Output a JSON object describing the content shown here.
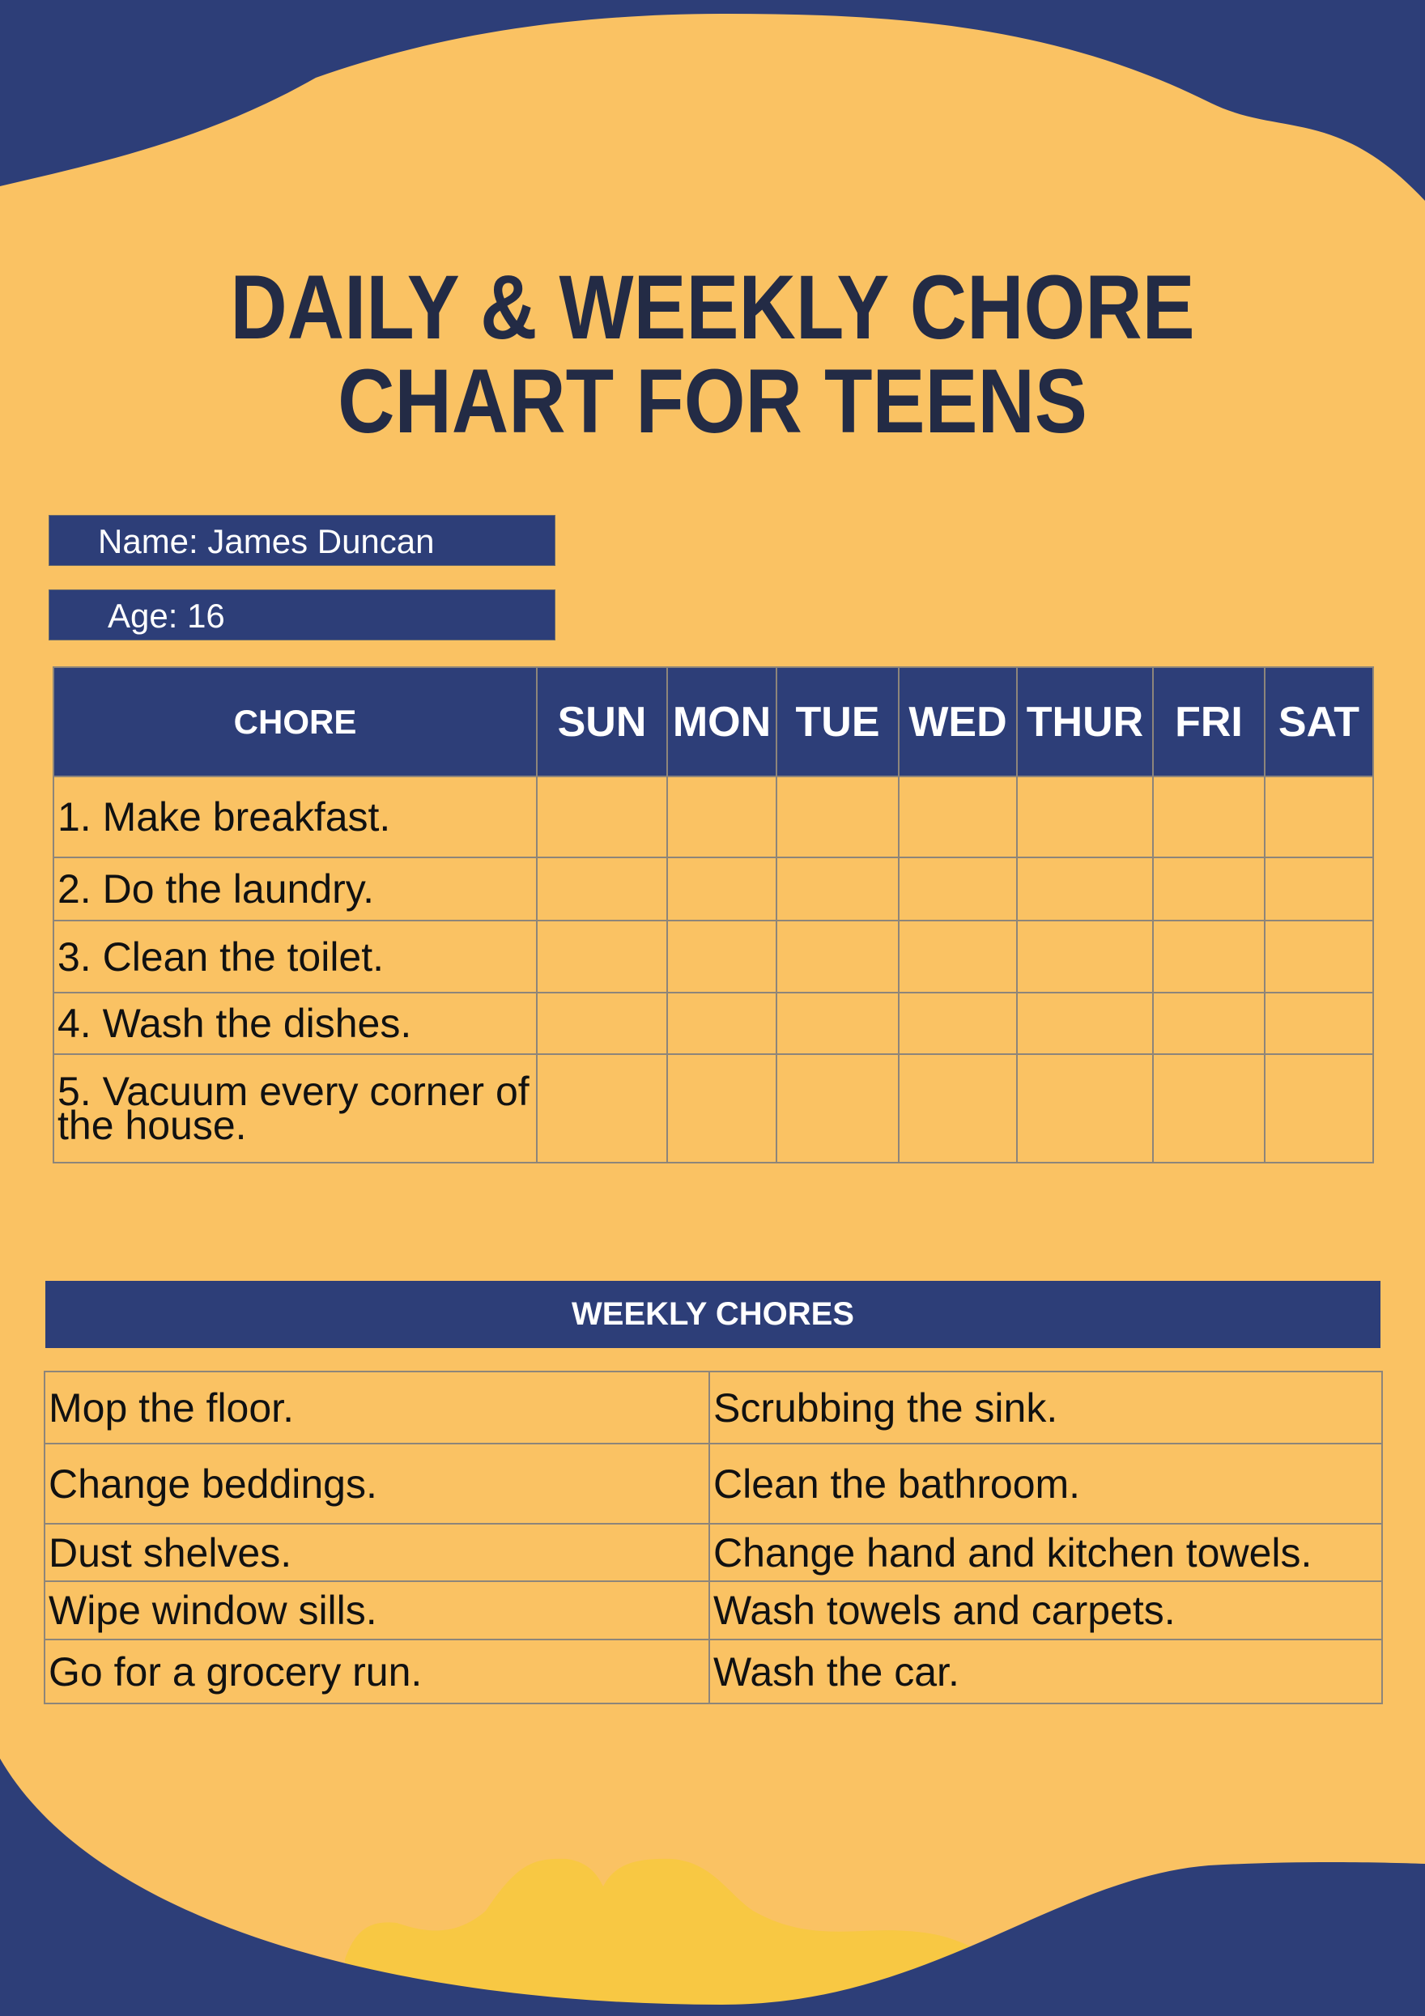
{
  "title": {
    "line1": "DAILY & WEEKLY CHORE",
    "line2": "CHART FOR TEENS"
  },
  "info": {
    "name": "Name: James Duncan",
    "age": "Age: 16"
  },
  "daily_table": {
    "headers": [
      "CHORE",
      "SUN",
      "MON",
      "TUE",
      "WED",
      "THUR",
      "FRI",
      "SAT"
    ],
    "rows": [
      "1. Make breakfast.",
      "2. Do the laundry.",
      "3. Clean the toilet.",
      "4. Wash the dishes.",
      "5. Vacuum every corner of the house."
    ]
  },
  "weekly": {
    "header": "WEEKLY CHORES",
    "rows": [
      [
        "Mop the floor.",
        "Scrubbing the sink."
      ],
      [
        "Change beddings.",
        "Clean the bathroom."
      ],
      [
        "Dust shelves.",
        "Change hand and kitchen towels."
      ],
      [
        "Wipe window sills.",
        "Wash towels and carpets."
      ],
      [
        "Go for a grocery run.",
        "Wash the car."
      ]
    ]
  },
  "colors": {
    "background": "#FAC263",
    "navy": "#2D3E78",
    "title": "#232B45",
    "hills": "#F8C843"
  }
}
